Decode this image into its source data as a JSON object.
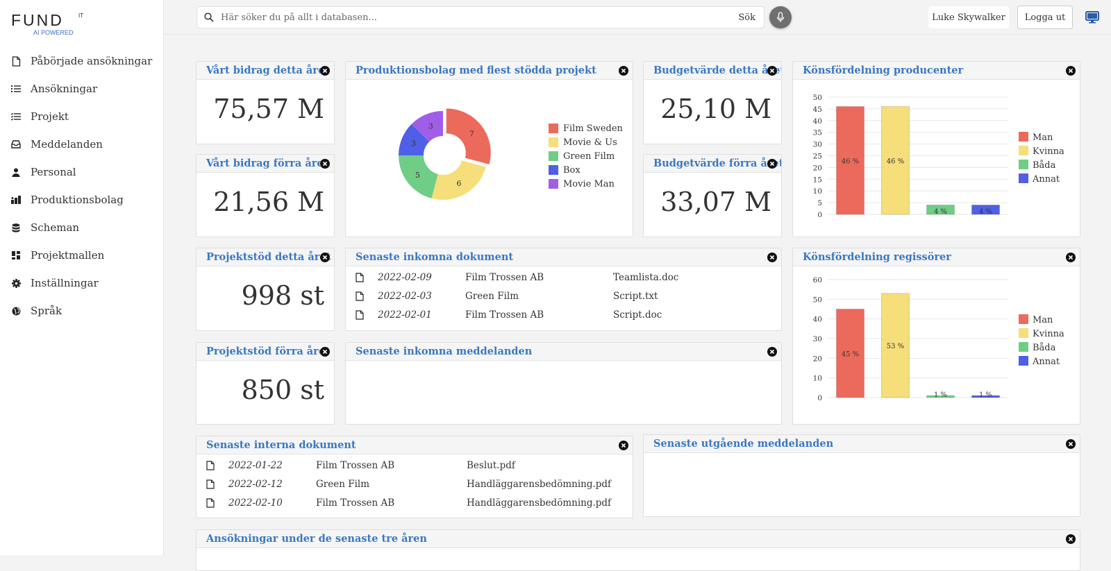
{
  "app": {
    "logo": "FUND",
    "logo_sup": "IT",
    "logo_sub": "AI POWERED"
  },
  "sidebar": {
    "items": [
      {
        "label": "Påbörjade ansökningar",
        "icon": "file-icon"
      },
      {
        "label": "Ansökningar",
        "icon": "list-icon"
      },
      {
        "label": "Projekt",
        "icon": "checklist-icon"
      },
      {
        "label": "Meddelanden",
        "icon": "inbox-icon"
      },
      {
        "label": "Personal",
        "icon": "user-icon"
      },
      {
        "label": "Produktionsbolag",
        "icon": "building-icon"
      },
      {
        "label": "Scheman",
        "icon": "database-icon"
      },
      {
        "label": "Projektmallen",
        "icon": "dashboard-icon"
      },
      {
        "label": "Inställningar",
        "icon": "gear-icon"
      },
      {
        "label": "Språk",
        "icon": "globe-icon"
      }
    ]
  },
  "topbar": {
    "search_placeholder": "Här söker du på allt i databasen...",
    "search_button": "Sök",
    "user": "Luke Skywalker",
    "logout": "Logga ut"
  },
  "panels": {
    "bidrag_detta": {
      "title": "Vårt bidrag detta året",
      "value": "75,57 M"
    },
    "bidrag_forra": {
      "title": "Vårt bidrag förra året",
      "value": "21,56 M"
    },
    "budget_detta": {
      "title": "Budgetvärde detta året",
      "value": "25,10 M"
    },
    "budget_forra": {
      "title": "Budgetvärde förra året",
      "value": "33,07 M"
    },
    "projektstod_detta": {
      "title": "Projektstöd detta året",
      "value": "998 st"
    },
    "projektstod_forra": {
      "title": "Projektstöd förra året",
      "value": "850 st"
    },
    "prod_bolag": {
      "title": "Produktionsbolag med flest stödda projekt"
    },
    "kon_prod": {
      "title": "Könsfördelning producenter"
    },
    "kon_regi": {
      "title": "Könsfördelning regissörer"
    },
    "inkomna_dok": {
      "title": "Senaste inkomna dokument"
    },
    "inkomna_medd": {
      "title": "Senaste inkomna meddelanden"
    },
    "interna_dok": {
      "title": "Senaste interna dokument"
    },
    "utgaende_medd": {
      "title": "Senaste utgående meddelanden"
    },
    "ansokningar": {
      "title": "Ansökningar under de senaste tre åren"
    }
  },
  "documents": {
    "incoming": [
      {
        "date": "2022-02-09",
        "company": "Film Trossen AB",
        "file": "Teamlista.doc"
      },
      {
        "date": "2022-02-03",
        "company": "Green Film",
        "file": "Script.txt"
      },
      {
        "date": "2022-02-01",
        "company": "Film Trossen AB",
        "file": "Script.doc"
      }
    ],
    "internal": [
      {
        "date": "2022-01-22",
        "company": "Film Trossen AB",
        "file": "Beslut.pdf"
      },
      {
        "date": "2022-02-12",
        "company": "Green Film",
        "file": "Handläggarensbedömning.pdf"
      },
      {
        "date": "2022-02-10",
        "company": "Film Trossen AB",
        "file": "Handläggarensbedömning.pdf"
      }
    ]
  },
  "colors": {
    "red": "#ec6a5c",
    "yellow": "#f6de7a",
    "green": "#6fcd86",
    "blue": "#4f5fe6",
    "purple": "#a05ee8",
    "title": "#3a78c2"
  },
  "chart_data": [
    {
      "type": "pie",
      "categories": [
        "Film Sweden",
        "Movie & Us",
        "Green Film",
        "Box",
        "Movie Man"
      ],
      "values": [
        7,
        6,
        5,
        3,
        3
      ],
      "colors": [
        "#ec6a5c",
        "#f6de7a",
        "#6fcd86",
        "#4f5fe6",
        "#a05ee8"
      ],
      "legend": "right"
    },
    {
      "type": "bar",
      "categories": [
        "Man",
        "Kvinna",
        "Båda",
        "Annat"
      ],
      "values": [
        46,
        46,
        4,
        4
      ],
      "labels": [
        "46 %",
        "46 %",
        "4 %",
        "4 %"
      ],
      "colors": [
        "#ec6a5c",
        "#f6de7a",
        "#6fcd86",
        "#4f5fe6"
      ],
      "ylim": [
        0,
        50
      ],
      "yticks": [
        0,
        5,
        10,
        15,
        20,
        25,
        30,
        35,
        40,
        45,
        50
      ],
      "legend": "right",
      "grid": true
    },
    {
      "type": "bar",
      "categories": [
        "Man",
        "Kvinna",
        "Båda",
        "Annat"
      ],
      "values": [
        45,
        53,
        1,
        1
      ],
      "labels": [
        "45 %",
        "53 %",
        "1 %",
        "1 %"
      ],
      "colors": [
        "#ec6a5c",
        "#f6de7a",
        "#6fcd86",
        "#4f5fe6"
      ],
      "ylim": [
        0,
        60
      ],
      "yticks": [
        0,
        10,
        20,
        30,
        40,
        50,
        60
      ],
      "legend": "right",
      "grid": true
    }
  ]
}
